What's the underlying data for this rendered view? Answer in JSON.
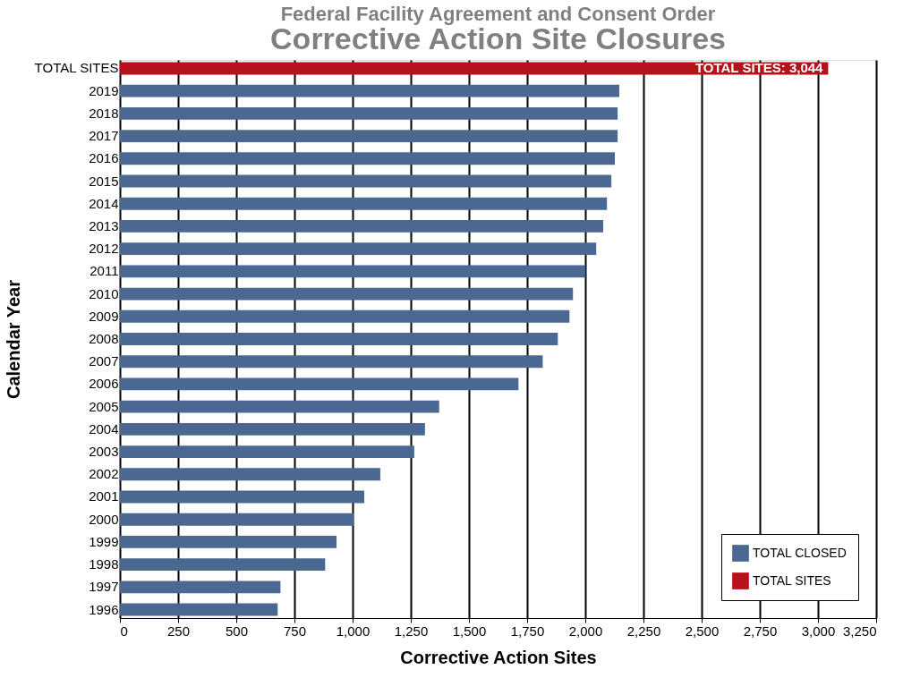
{
  "chart_data": {
    "type": "bar",
    "orientation": "horizontal",
    "title": "Corrective Action Site Closures",
    "subtitle": "Federal Facility Agreement and Consent Order",
    "xlabel": "Corrective Action Sites",
    "ylabel": "Calendar Year",
    "categories": [
      "TOTAL SITES",
      "2019",
      "2018",
      "2017",
      "2016",
      "2015",
      "2014",
      "2013",
      "2012",
      "2011",
      "2010",
      "2009",
      "2008",
      "2007",
      "2006",
      "2005",
      "2004",
      "2003",
      "2002",
      "2001",
      "2000",
      "1999",
      "1998",
      "1997",
      "1996"
    ],
    "series": [
      {
        "name": "TOTAL CLOSED",
        "color": "#4a6892",
        "values": [
          null,
          2146,
          2139,
          2139,
          2127,
          2112,
          2093,
          2077,
          2047,
          2001,
          1947,
          1932,
          1882,
          1817,
          1713,
          1372,
          1311,
          1265,
          1119,
          1050,
          1004,
          931,
          882,
          690,
          678
        ]
      },
      {
        "name": "TOTAL SITES",
        "color": "#b5121b",
        "values": [
          3044,
          null,
          null,
          null,
          null,
          null,
          null,
          null,
          null,
          null,
          null,
          null,
          null,
          null,
          null,
          null,
          null,
          null,
          null,
          null,
          null,
          null,
          null,
          null,
          null
        ],
        "value_labels": [
          "TOTAL SITES: 3,044",
          null,
          null,
          null,
          null,
          null,
          null,
          null,
          null,
          null,
          null,
          null,
          null,
          null,
          null,
          null,
          null,
          null,
          null,
          null,
          null,
          null,
          null,
          null,
          null
        ]
      }
    ],
    "xlim": [
      0,
      3250
    ],
    "xticks": [
      0,
      250,
      500,
      750,
      {
        "value": 1000,
        "label": "1,000"
      },
      {
        "value": 1250,
        "label": "1,250"
      },
      {
        "value": 1500,
        "label": "1,500"
      },
      {
        "value": 1750,
        "label": "1,750"
      },
      {
        "value": 2000,
        "label": "2,000"
      },
      {
        "value": 2250,
        "label": "2,250"
      },
      {
        "value": 2500,
        "label": "2,500"
      },
      {
        "value": 2750,
        "label": "2,750"
      },
      {
        "value": 3000,
        "label": "3,000"
      },
      {
        "value": 3250,
        "label": "3,250"
      }
    ],
    "grid": "x",
    "legend": "bottom right"
  }
}
